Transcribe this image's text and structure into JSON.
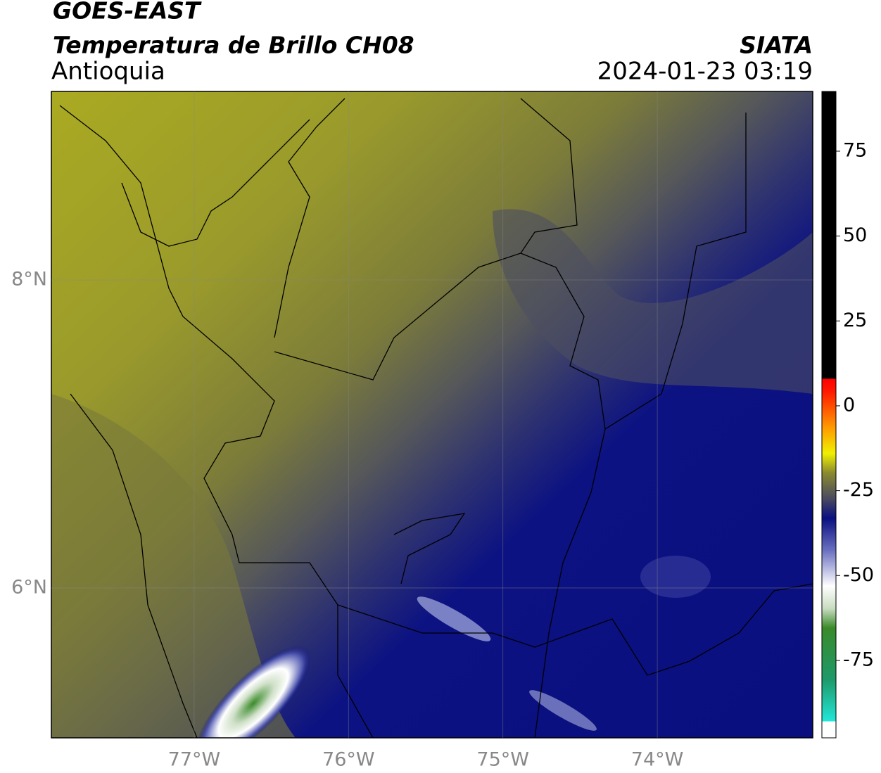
{
  "header": {
    "title": "GOES-EAST",
    "subtitle": "Temperatura de Brillo CH08",
    "region": "Antioquia",
    "source": "SIATA",
    "timestamp": "2024-01-23 03:19"
  },
  "map": {
    "xlim": [
      -77.925,
      -72.993
    ],
    "ylim": [
      5.027,
      9.224
    ],
    "xticks": [
      {
        "value": -77,
        "label": "77°W"
      },
      {
        "value": -76,
        "label": "76°W"
      },
      {
        "value": -75,
        "label": "75°W"
      },
      {
        "value": -74,
        "label": "74°W"
      }
    ],
    "yticks": [
      {
        "value": 8,
        "label": "8°N"
      },
      {
        "value": 6,
        "label": "6°N"
      }
    ],
    "grid": true
  },
  "colorbar": {
    "lim": [
      -97.8,
      92.6
    ],
    "ticks": [
      75,
      50,
      25,
      0,
      -25,
      -50,
      -75
    ]
  }
}
